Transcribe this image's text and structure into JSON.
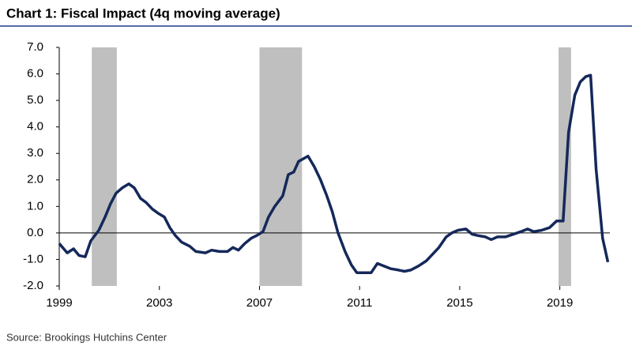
{
  "chart_data": {
    "type": "line",
    "title": "Chart 1: Fiscal Impact (4q moving average)",
    "source": "Source: Brookings Hutchins Center",
    "xlim": [
      1999,
      2021
    ],
    "xticks": [
      1999,
      2003,
      2007,
      2011,
      2015,
      2019
    ],
    "ylim": [
      -2,
      7
    ],
    "yticks": [
      {
        "value": -2,
        "label": "-2.0"
      },
      {
        "value": -1,
        "label": "-1.0"
      },
      {
        "value": 0,
        "label": "0.0"
      },
      {
        "value": 1,
        "label": "1.0"
      },
      {
        "value": 2,
        "label": "2.0"
      },
      {
        "value": 3,
        "label": "3.0"
      },
      {
        "value": 4,
        "label": "4.0"
      },
      {
        "value": 5,
        "label": "5.0"
      },
      {
        "value": 6,
        "label": "6.0"
      },
      {
        "value": 7,
        "label": "7.0"
      }
    ],
    "shaded_periods": [
      [
        2000.3,
        2001.3
      ],
      [
        2007.0,
        2008.7
      ],
      [
        2018.95,
        2019.45
      ]
    ],
    "shade_color": "#bfbfbf",
    "x": [
      1999.0,
      1999.32,
      1999.57,
      1999.79,
      2000.04,
      2000.26,
      2000.58,
      2000.83,
      2001.05,
      2001.27,
      2001.52,
      2001.78,
      2002.0,
      2002.25,
      2002.47,
      2002.72,
      2002.94,
      2003.2,
      2003.42,
      2003.64,
      2003.89,
      2004.21,
      2004.46,
      2004.84,
      2005.09,
      2005.4,
      2005.72,
      2005.94,
      2006.16,
      2006.41,
      2006.67,
      2006.89,
      2007.14,
      2007.36,
      2007.61,
      2007.93,
      2008.15,
      2008.37,
      2008.56,
      2008.94,
      2009.19,
      2009.44,
      2009.69,
      2009.91,
      2010.14,
      2010.42,
      2010.67,
      2010.89,
      2011.15,
      2011.46,
      2011.71,
      2011.97,
      2012.25,
      2012.56,
      2012.79,
      2013.04,
      2013.35,
      2013.67,
      2013.92,
      2014.17,
      2014.46,
      2014.68,
      2014.93,
      2015.25,
      2015.5,
      2015.72,
      2016.03,
      2016.26,
      2016.51,
      2016.82,
      2017.14,
      2017.45,
      2017.71,
      2017.96,
      2018.27,
      2018.59,
      2018.87,
      2019.13,
      2019.35,
      2019.6,
      2019.82,
      2020.04,
      2020.23,
      2020.45,
      2020.71,
      2020.92
    ],
    "series": [
      {
        "color": "#14285a",
        "values": [
          -0.4,
          -0.75,
          -0.6,
          -0.85,
          -0.9,
          -0.3,
          0.1,
          0.6,
          1.1,
          1.5,
          1.7,
          1.85,
          1.7,
          1.3,
          1.15,
          0.9,
          0.75,
          0.6,
          0.2,
          -0.1,
          -0.35,
          -0.5,
          -0.7,
          -0.75,
          -0.65,
          -0.7,
          -0.7,
          -0.55,
          -0.65,
          -0.4,
          -0.2,
          -0.1,
          0.05,
          0.6,
          1.0,
          1.4,
          2.2,
          2.3,
          2.7,
          2.9,
          2.5,
          2.0,
          1.4,
          0.8,
          0.0,
          -0.7,
          -1.2,
          -1.5,
          -1.5,
          -1.5,
          -1.15,
          -1.25,
          -1.35,
          -1.4,
          -1.45,
          -1.4,
          -1.25,
          -1.05,
          -0.8,
          -0.55,
          -0.15,
          0.0,
          0.1,
          0.15,
          -0.05,
          -0.1,
          -0.15,
          -0.25,
          -0.15,
          -0.15,
          -0.05,
          0.05,
          0.15,
          0.05,
          0.1,
          0.2,
          0.45,
          0.45,
          3.8,
          5.2,
          5.7,
          5.9,
          5.95,
          2.4,
          -0.2,
          -1.1
        ]
      }
    ]
  }
}
